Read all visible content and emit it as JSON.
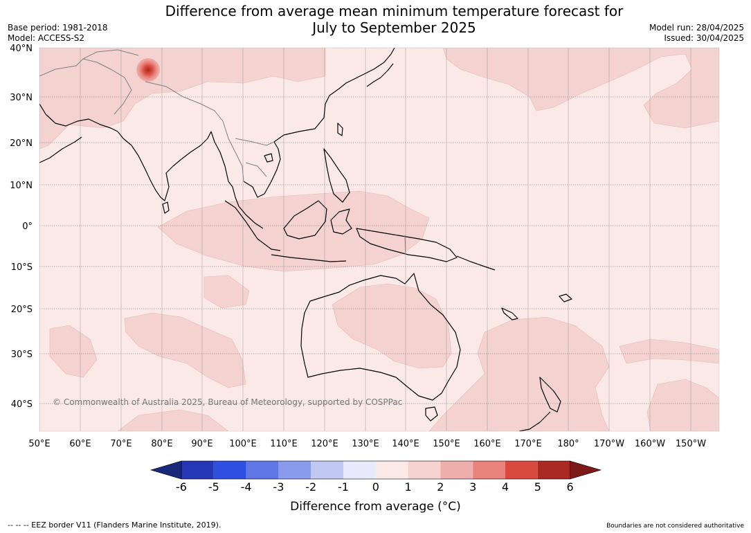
{
  "title": {
    "line1": "Difference from average mean minimum temperature forecast for",
    "line2": "July to September 2025"
  },
  "meta": {
    "base_period": "Base period: 1981-2018",
    "model": "Model: ACCESS-S2",
    "model_run": "Model run: 28/04/2025",
    "issued": "Issued: 30/04/2025"
  },
  "map": {
    "region": "Indo-Pacific",
    "lat_labels": [
      "40°N",
      "30°N",
      "20°N",
      "10°N",
      "0°",
      "10°S",
      "20°S",
      "30°S",
      "40°S"
    ],
    "lon_labels": [
      "50°E",
      "60°E",
      "70°E",
      "80°E",
      "90°E",
      "100°E",
      "110°E",
      "120°E",
      "130°E",
      "140°E",
      "150°E",
      "160°E",
      "170°E",
      "180°",
      "170°W",
      "160°W",
      "150°W"
    ],
    "copyright": "© Commonwealth of Australia 2025, Bureau of Meteorology, supported by COSPPac",
    "colors": {
      "ocean_0_1": "#fbe9e7",
      "anom_1_2": "#f4d2d0",
      "anom_2_3": "#eeaeab",
      "anom_3_4": "#e7837b",
      "anom_4_5": "#d84940",
      "anom_5_6": "#ab2923",
      "coast": "#000000",
      "borders": "#808080"
    }
  },
  "colorbar": {
    "ticks": [
      "-6",
      "-5",
      "-4",
      "-3",
      "-2",
      "-1",
      "0",
      "1",
      "2",
      "3",
      "4",
      "5",
      "6"
    ],
    "label": "Difference from average (°C)",
    "colors": [
      "#1a2a7a",
      "#2537b4",
      "#2f4fe0",
      "#5f77e4",
      "#8b9bec",
      "#c1c8f4",
      "#e8eafb",
      "#fbe9e7",
      "#f4d2d0",
      "#eeaeab",
      "#e7837b",
      "#d84940",
      "#ab2923",
      "#7c1a17"
    ]
  },
  "footer": {
    "eez": "--  --  -- EEZ border V11 (Flanders Marine Institute, 2019).",
    "disclaimer": "Boundaries are not considered authoritative"
  }
}
